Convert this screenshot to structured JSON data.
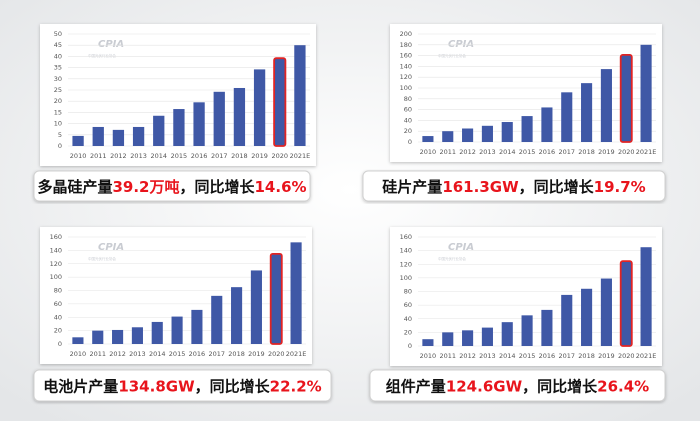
{
  "watermark": {
    "logo": "CPIA",
    "org": "中国光伏行业协会"
  },
  "caption_highlight_color": "#e8141c",
  "chart_data": [
    {
      "type": "bar",
      "caption": [
        "多晶硅产量",
        "39.2万吨",
        "，同比增长",
        "14.6%"
      ],
      "categories": [
        "2010",
        "2011",
        "2012",
        "2013",
        "2014",
        "2015",
        "2016",
        "2017",
        "2018",
        "2019",
        "2020",
        "2021E"
      ],
      "values": [
        4.5,
        8.5,
        7.2,
        8.5,
        13.5,
        16.5,
        19.5,
        24.2,
        25.9,
        34.2,
        39.2,
        45
      ],
      "color": "#3f58a6",
      "edge_colors": [
        null,
        null,
        null,
        null,
        null,
        null,
        null,
        null,
        null,
        null,
        "#e02424",
        null
      ],
      "ylim": [
        0,
        50
      ],
      "yticks": [
        0,
        5,
        10,
        15,
        20,
        25,
        30,
        35,
        40,
        45,
        50
      ],
      "grid": true
    },
    {
      "type": "bar",
      "caption": [
        "硅片产量",
        "161.3GW",
        "，同比增长",
        "19.7%"
      ],
      "categories": [
        "2010",
        "2011",
        "2012",
        "2013",
        "2014",
        "2015",
        "2016",
        "2017",
        "2018",
        "2019",
        "2020",
        "2021E"
      ],
      "values": [
        11,
        20,
        25,
        30,
        37,
        48,
        64,
        92,
        109,
        135,
        161.3,
        180
      ],
      "color": "#3f58a6",
      "edge_colors": [
        null,
        null,
        null,
        null,
        null,
        null,
        null,
        null,
        null,
        null,
        "#e02424",
        null
      ],
      "ylim": [
        0,
        200
      ],
      "yticks": [
        0,
        20,
        40,
        60,
        80,
        100,
        120,
        140,
        160,
        180,
        200
      ],
      "grid": true
    },
    {
      "type": "bar",
      "caption": [
        "电池片产量",
        "134.8GW",
        "，同比增长",
        "22.2%"
      ],
      "categories": [
        "2010",
        "2011",
        "2012",
        "2013",
        "2014",
        "2015",
        "2016",
        "2017",
        "2018",
        "2019",
        "2020",
        "2021E"
      ],
      "values": [
        10,
        20,
        21,
        25,
        33,
        41,
        51,
        72,
        85,
        110,
        134.8,
        152
      ],
      "color": "#3f58a6",
      "edge_colors": [
        null,
        null,
        null,
        null,
        null,
        null,
        null,
        null,
        null,
        null,
        "#e02424",
        null
      ],
      "ylim": [
        0,
        160
      ],
      "yticks": [
        0,
        20,
        40,
        60,
        80,
        100,
        120,
        140,
        160
      ],
      "grid": true
    },
    {
      "type": "bar",
      "caption": [
        "组件产量",
        "124.6GW",
        "，同比增长",
        "26.4%"
      ],
      "categories": [
        "2010",
        "2011",
        "2012",
        "2013",
        "2014",
        "2015",
        "2016",
        "2017",
        "2018",
        "2019",
        "2020",
        "2021E"
      ],
      "values": [
        10,
        20,
        23,
        27,
        35,
        45,
        53,
        75,
        84,
        99,
        124.6,
        145
      ],
      "color": "#3f58a6",
      "edge_colors": [
        null,
        null,
        null,
        null,
        null,
        null,
        null,
        null,
        null,
        null,
        "#e02424",
        null
      ],
      "ylim": [
        0,
        160
      ],
      "yticks": [
        0,
        20,
        40,
        60,
        80,
        100,
        120,
        140,
        160
      ],
      "grid": true
    }
  ]
}
